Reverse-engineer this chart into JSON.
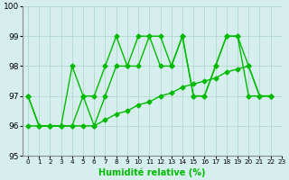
{
  "line1": [
    97,
    96,
    96,
    96,
    98,
    97,
    97,
    98,
    99,
    98,
    99,
    99,
    99,
    98,
    99,
    97,
    97,
    98,
    99,
    99,
    98,
    97,
    97
  ],
  "line2": [
    97,
    96,
    96,
    96,
    96,
    97,
    96,
    97,
    98,
    98,
    98,
    99,
    98,
    98,
    99,
    97,
    97,
    98,
    99,
    99,
    97,
    97,
    97
  ],
  "line3": [
    96,
    96,
    96,
    96,
    96,
    96,
    96,
    96.2,
    96.4,
    96.5,
    96.7,
    96.8,
    97,
    97.1,
    97.3,
    97.4,
    97.5,
    97.6,
    97.8,
    97.9,
    98,
    97,
    97
  ],
  "x": [
    0,
    1,
    2,
    3,
    4,
    5,
    6,
    7,
    8,
    9,
    10,
    11,
    12,
    13,
    14,
    15,
    16,
    17,
    18,
    19,
    20,
    21,
    22
  ],
  "xlabel": "Humidité relative (%)",
  "ylim": [
    95,
    100
  ],
  "xlim": [
    -0.5,
    23
  ],
  "yticks": [
    95,
    96,
    97,
    98,
    99,
    100
  ],
  "xtick_labels": [
    "0",
    "1",
    "2",
    "3",
    "4",
    "5",
    "6",
    "7",
    "8",
    "9",
    "10",
    "11",
    "12",
    "13",
    "14",
    "15",
    "16",
    "17",
    "18",
    "19",
    "20",
    "21",
    "22",
    "23"
  ],
  "line_color": "#00bb00",
  "bg_color": "#d6eeee",
  "grid_color": "#b0d8cc",
  "marker": "D",
  "markersize": 2.5,
  "linewidth": 1.0
}
